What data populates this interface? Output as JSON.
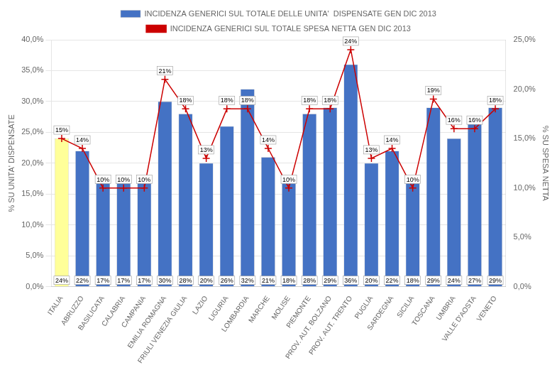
{
  "chart_data": {
    "type": "bar",
    "categories": [
      "ITALIA",
      "ABRUZZO",
      "BASILICATA",
      "CALABRIA",
      "CAMPANIA",
      "EMILIA ROMAGNA",
      "FRIULI VENEZIA GIULIA",
      "LAZIO",
      "LIGURIA",
      "LOMBARDIA",
      "MARCHE",
      "MOLISE",
      "PIEMONTE",
      "PROV. AUT. BOLZANO",
      "PROV. AUT. TRENTO",
      "PUGLIA",
      "SARDEGNA",
      "SICILIA",
      "TOSCANA",
      "UMBRIA",
      "VALLE D'AOSTA",
      "VENETO"
    ],
    "series": [
      {
        "name": "INCIDENZA GENERICI SUL TOTALE DELLE UNITA'  DISPENSATE GEN DIC 2013",
        "type": "bar",
        "color": "#4472C4",
        "colors": [
          "#FFFF99",
          "#4472C4",
          "#4472C4",
          "#4472C4",
          "#4472C4",
          "#4472C4",
          "#4472C4",
          "#4472C4",
          "#4472C4",
          "#4472C4",
          "#4472C4",
          "#4472C4",
          "#4472C4",
          "#4472C4",
          "#4472C4",
          "#4472C4",
          "#4472C4",
          "#4472C4",
          "#4472C4",
          "#4472C4",
          "#4472C4",
          "#4472C4"
        ],
        "values": [
          24,
          22,
          17,
          17,
          17,
          30,
          28,
          20,
          26,
          32,
          21,
          18,
          28,
          29,
          36,
          20,
          22,
          18,
          29,
          24,
          27,
          29
        ],
        "value_labels": [
          "24%",
          "22%",
          "17%",
          "17%",
          "17%",
          "30%",
          "28%",
          "20%",
          "26%",
          "32%",
          "21%",
          "18%",
          "28%",
          "29%",
          "36%",
          "20%",
          "22%",
          "18%",
          "29%",
          "24%",
          "27%",
          "29%"
        ]
      },
      {
        "name": "INCIDENZA GENERICI SUL TOTALE SPESA NETTA GEN DIC 2013",
        "type": "line",
        "axis": "y2",
        "color": "#CC0000",
        "marker": "plus",
        "values": [
          15,
          14,
          10,
          10,
          10,
          21,
          18,
          13,
          18,
          18,
          14,
          10,
          18,
          18,
          24,
          13,
          14,
          10,
          19,
          16,
          16,
          18
        ],
        "value_labels": [
          "15%",
          "14%",
          "10%",
          "10%",
          "10%",
          "21%",
          "18%",
          "13%",
          "18%",
          "18%",
          "14%",
          "10%",
          "18%",
          "18%",
          "24%",
          "13%",
          "14%",
          "10%",
          "19%",
          "16%",
          "16%",
          "18%"
        ]
      }
    ],
    "ylabel": "% SU UNITA' DISPENSATE",
    "y2label": "% SU SPESA NETTA",
    "ylim": [
      0,
      40
    ],
    "yticks": [
      {
        "value": 0,
        "label": "0,0%"
      },
      {
        "value": 5,
        "label": "5,0%"
      },
      {
        "value": 10,
        "label": "10,0%"
      },
      {
        "value": 15,
        "label": "15,0%"
      },
      {
        "value": 20,
        "label": "20,0%"
      },
      {
        "value": 25,
        "label": "25,0%"
      },
      {
        "value": 30,
        "label": "30,0%"
      },
      {
        "value": 35,
        "label": "35,0%"
      },
      {
        "value": 40,
        "label": "40,0%"
      }
    ],
    "y2lim": [
      0,
      25
    ],
    "y2ticks": [
      {
        "value": 0,
        "label": "0,0%"
      },
      {
        "value": 5,
        "label": "5,0%"
      },
      {
        "value": 10,
        "label": "10,0%"
      },
      {
        "value": 15,
        "label": "15,0%"
      },
      {
        "value": 20,
        "label": "20,0%"
      },
      {
        "value": 25,
        "label": "25,0%"
      }
    ],
    "grid": true,
    "legend": "top",
    "data_labels": true
  }
}
